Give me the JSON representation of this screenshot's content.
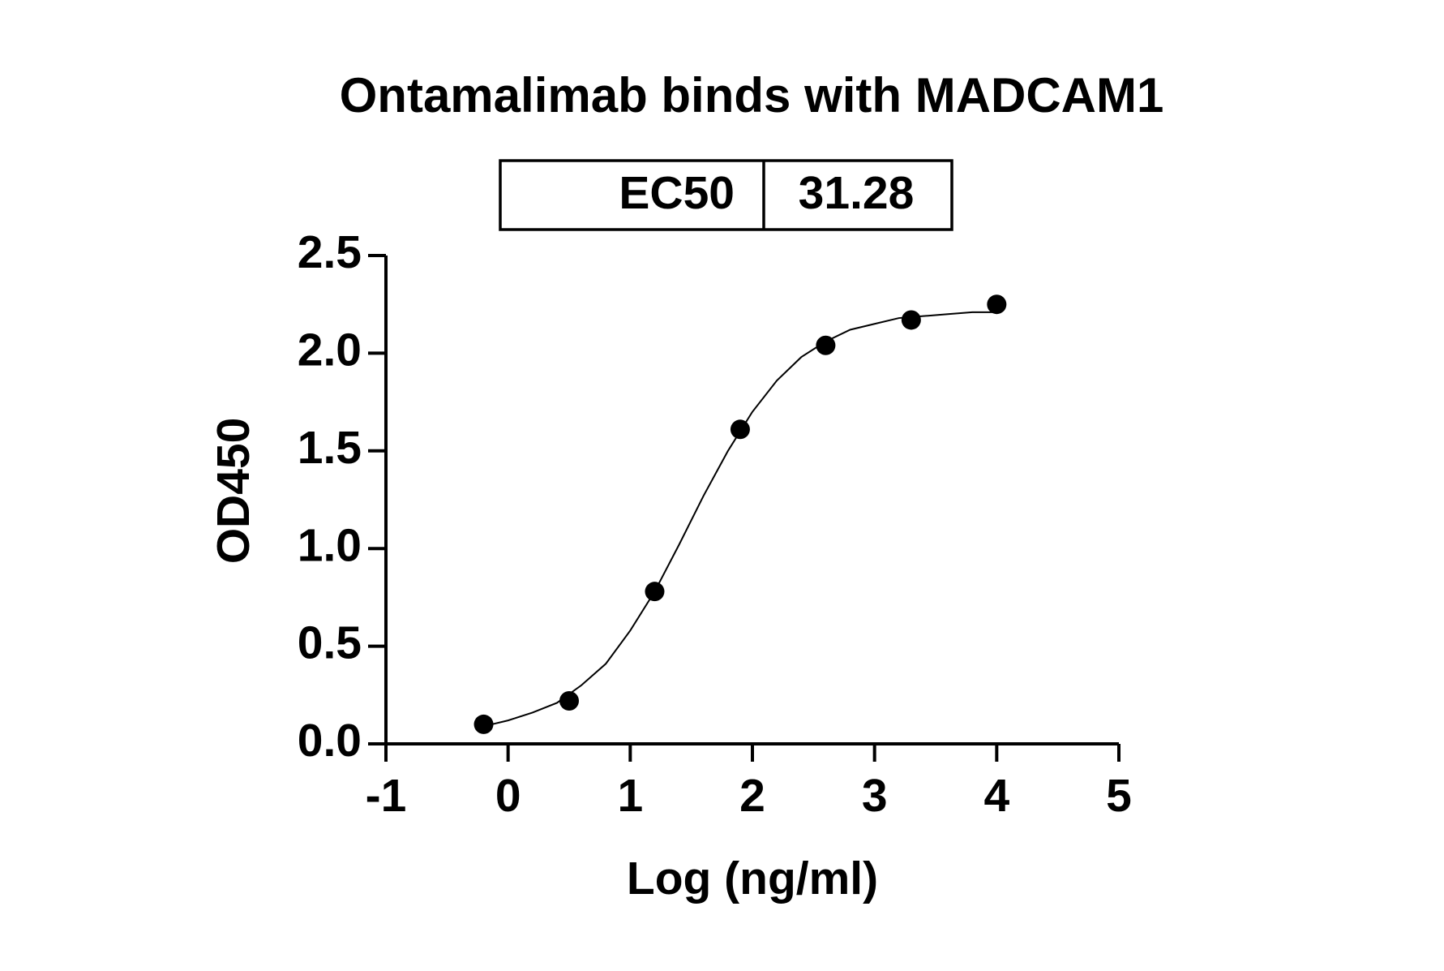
{
  "chart_data": {
    "type": "scatter",
    "title": "Ontamalimab binds with MADCAM1",
    "ec50_table": {
      "label": "EC50",
      "value": "31.28"
    },
    "x_label": "Log (ng/ml)",
    "y_label": "OD450",
    "x": [
      -0.2,
      0.5,
      1.2,
      1.9,
      2.6,
      3.3,
      4
    ],
    "values": [
      0.1,
      0.22,
      0.78,
      1.61,
      2.04,
      2.17,
      2.25
    ],
    "color": "#000000",
    "curve": {
      "x": [
        -0.2,
        0,
        0.2,
        0.4,
        0.6,
        0.8,
        1.0,
        1.2,
        1.4,
        1.6,
        1.8,
        2.0,
        2.2,
        2.4,
        2.6,
        2.8,
        3.0,
        3.2,
        3.4,
        3.6,
        3.8,
        4.0
      ],
      "values": [
        0.09,
        0.12,
        0.16,
        0.21,
        0.3,
        0.41,
        0.58,
        0.78,
        1.02,
        1.27,
        1.5,
        1.7,
        1.86,
        1.98,
        2.06,
        2.12,
        2.15,
        2.18,
        2.19,
        2.2,
        2.21,
        2.21
      ]
    },
    "xlim": [
      -1,
      5
    ],
    "xticks": [
      -1,
      0,
      1,
      2,
      3,
      4,
      5
    ],
    "ylim": [
      0,
      2.5
    ],
    "yticks": [
      {
        "value": 0,
        "label": "0.0"
      },
      {
        "value": 0.5,
        "label": "0.5"
      },
      {
        "value": 1,
        "label": "1.0"
      },
      {
        "value": 1.5,
        "label": "1.5"
      },
      {
        "value": 2,
        "label": "2.0"
      },
      {
        "value": 2.5,
        "label": "2.5"
      }
    ]
  }
}
